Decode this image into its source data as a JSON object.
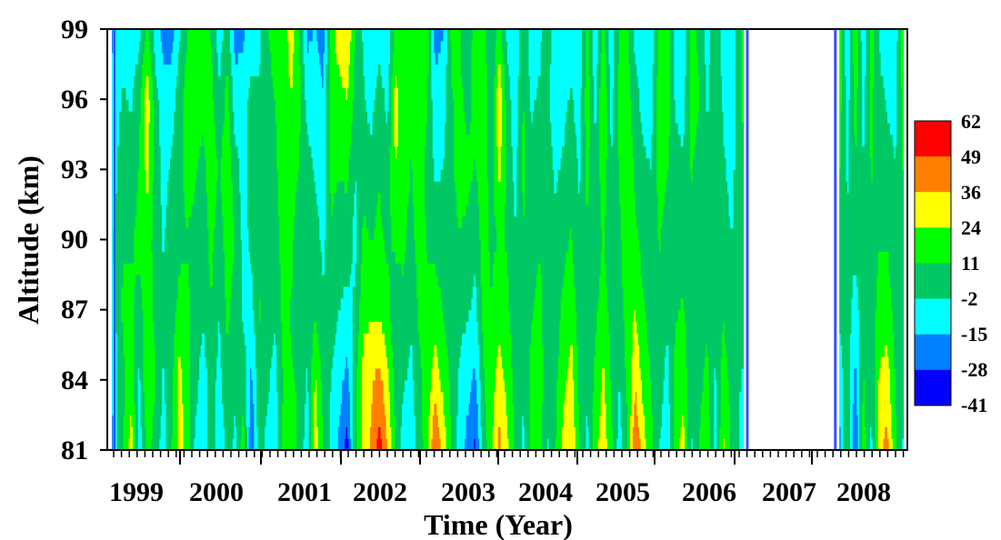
{
  "chart_data": {
    "type": "heatmap",
    "subtype": "filled-contour",
    "title": "",
    "xlabel": "Time (Year)",
    "ylabel": "Altitude (km)",
    "xlim": [
      1998.6,
      2008.6
    ],
    "ylim": [
      81,
      99
    ],
    "x_tick_labels": [
      "1999",
      "2000",
      "2001",
      "2002",
      "2003",
      "2004",
      "2005",
      "2006",
      "2007",
      "2008"
    ],
    "y_ticks": [
      81,
      84,
      87,
      90,
      93,
      96,
      99
    ],
    "colorbar": {
      "placement": "right",
      "levels": [
        62,
        49,
        36,
        24,
        11,
        -2,
        -15,
        -28,
        -41
      ],
      "colors": [
        "#ff0000",
        "#ff8000",
        "#ffff00",
        "#00ff00",
        "#00c864",
        "#00ffff",
        "#0080ff",
        "#0000ff"
      ]
    },
    "data_gap": {
      "from": 2006.6,
      "to": 2007.7
    },
    "column_times": [
      1998.65,
      1998.8,
      1998.9,
      1999.0,
      1999.1,
      1999.2,
      1999.3,
      1999.4,
      1999.5,
      1999.6,
      1999.7,
      1999.8,
      1999.9,
      2000.0,
      2000.1,
      2000.2,
      2000.3,
      2000.4,
      2000.5,
      2000.6,
      2000.7,
      2000.8,
      2000.9,
      2001.0,
      2001.1,
      2001.2,
      2001.3,
      2001.4,
      2001.5,
      2001.6,
      2001.7,
      2001.8,
      2001.9,
      2002.0,
      2002.1,
      2002.2,
      2002.3,
      2002.4,
      2002.5,
      2002.6,
      2002.7,
      2002.8,
      2002.9,
      2003.0,
      2003.1,
      2003.2,
      2003.3,
      2003.4,
      2003.5,
      2003.6,
      2003.7,
      2003.8,
      2003.9,
      2004.0,
      2004.1,
      2004.2,
      2004.3,
      2004.4,
      2004.5,
      2004.6,
      2004.7,
      2004.8,
      2004.9,
      2005.0,
      2005.1,
      2005.2,
      2005.3,
      2005.4,
      2005.5,
      2005.6,
      2005.7,
      2005.8,
      2005.9,
      2006.0,
      2006.1,
      2006.2,
      2006.3,
      2006.4,
      2006.55,
      2007.75,
      2007.85,
      2007.95,
      2008.05,
      2008.15,
      2008.25,
      2008.35,
      2008.45,
      2008.55
    ],
    "altitudes_km": [
      81,
      84,
      87,
      90,
      93,
      96,
      99
    ],
    "values_by_column_bottom_to_top": [
      [
        -20,
        -15,
        -10,
        -5,
        -10,
        -12,
        -18
      ],
      [
        12,
        8,
        14,
        10,
        6,
        0,
        -8
      ],
      [
        30,
        20,
        14,
        9,
        4,
        -4,
        -10
      ],
      [
        -10,
        -5,
        6,
        15,
        12,
        8,
        -6
      ],
      [
        15,
        25,
        18,
        20,
        28,
        32,
        14
      ],
      [
        5,
        12,
        8,
        4,
        6,
        4,
        -8
      ],
      [
        -8,
        -4,
        2,
        -3,
        -6,
        -10,
        -20
      ],
      [
        10,
        6,
        4,
        2,
        0,
        -8,
        -22
      ],
      [
        28,
        30,
        15,
        8,
        6,
        4,
        -4
      ],
      [
        20,
        15,
        14,
        10,
        16,
        18,
        10
      ],
      [
        -5,
        2,
        6,
        8,
        12,
        14,
        18
      ],
      [
        -10,
        -8,
        0,
        4,
        8,
        14,
        16
      ],
      [
        6,
        4,
        10,
        15,
        18,
        15,
        10
      ],
      [
        -12,
        -6,
        -2,
        4,
        10,
        0,
        -10
      ],
      [
        2,
        8,
        14,
        18,
        20,
        16,
        6
      ],
      [
        -5,
        0,
        6,
        10,
        4,
        -10,
        -20
      ],
      [
        18,
        6,
        -4,
        -6,
        -8,
        -8,
        -18
      ],
      [
        -28,
        -18,
        -6,
        0,
        6,
        2,
        -8
      ],
      [
        4,
        8,
        12,
        8,
        4,
        0,
        -6
      ],
      [
        -6,
        0,
        4,
        10,
        6,
        2,
        10
      ],
      [
        -10,
        -6,
        0,
        4,
        8,
        12,
        20
      ],
      [
        14,
        12,
        16,
        18,
        20,
        16,
        18
      ],
      [
        18,
        12,
        10,
        14,
        18,
        24,
        30
      ],
      [
        8,
        10,
        6,
        2,
        10,
        14,
        12
      ],
      [
        -10,
        -4,
        2,
        6,
        4,
        -8,
        -18
      ],
      [
        30,
        26,
        10,
        4,
        -4,
        -10,
        -14
      ],
      [
        12,
        6,
        0,
        -6,
        -10,
        -14,
        -20
      ],
      [
        -6,
        -2,
        4,
        10,
        14,
        18,
        20
      ],
      [
        -18,
        -10,
        -2,
        4,
        12,
        20,
        30
      ],
      [
        -35,
        -20,
        -6,
        4,
        14,
        24,
        36
      ],
      [
        10,
        6,
        0,
        -6,
        -2,
        6,
        10
      ],
      [
        25,
        30,
        20,
        14,
        6,
        0,
        -4
      ],
      [
        38,
        34,
        22,
        10,
        4,
        -8,
        -14
      ],
      [
        55,
        40,
        22,
        14,
        10,
        6,
        -10
      ],
      [
        36,
        28,
        16,
        8,
        4,
        -6,
        -14
      ],
      [
        12,
        6,
        2,
        14,
        24,
        30,
        14
      ],
      [
        -10,
        0,
        8,
        14,
        18,
        16,
        12
      ],
      [
        -10,
        -6,
        0,
        6,
        10,
        14,
        18
      ],
      [
        4,
        8,
        14,
        18,
        20,
        22,
        18
      ],
      [
        20,
        18,
        14,
        10,
        6,
        12,
        16
      ],
      [
        50,
        30,
        18,
        6,
        -4,
        -12,
        -20
      ],
      [
        32,
        20,
        10,
        4,
        -2,
        -8,
        -16
      ],
      [
        12,
        8,
        4,
        6,
        8,
        10,
        14
      ],
      [
        -8,
        -4,
        2,
        10,
        16,
        14,
        12
      ],
      [
        -20,
        -10,
        0,
        8,
        14,
        8,
        -2
      ],
      [
        -30,
        -18,
        -6,
        2,
        10,
        14,
        20
      ],
      [
        4,
        10,
        14,
        18,
        20,
        24,
        16
      ],
      [
        20,
        18,
        12,
        8,
        4,
        0,
        -4
      ],
      [
        40,
        30,
        20,
        12,
        28,
        36,
        16
      ],
      [
        26,
        20,
        14,
        10,
        6,
        4,
        -6
      ],
      [
        10,
        6,
        2,
        -2,
        -6,
        -10,
        -16
      ],
      [
        -6,
        0,
        6,
        10,
        14,
        12,
        10
      ],
      [
        16,
        14,
        10,
        6,
        2,
        -4,
        -10
      ],
      [
        20,
        18,
        14,
        10,
        6,
        0,
        -6
      ],
      [
        -4,
        2,
        6,
        10,
        4,
        0,
        8
      ],
      [
        10,
        8,
        4,
        0,
        -4,
        -8,
        -12
      ],
      [
        28,
        20,
        14,
        8,
        0,
        -6,
        -16
      ],
      [
        36,
        30,
        20,
        12,
        6,
        0,
        -10
      ],
      [
        12,
        8,
        4,
        0,
        -4,
        -8,
        -14
      ],
      [
        -6,
        0,
        6,
        10,
        14,
        18,
        16
      ],
      [
        20,
        14,
        8,
        4,
        0,
        -6,
        -12
      ],
      [
        32,
        26,
        18,
        12,
        20,
        26,
        14
      ],
      [
        14,
        10,
        6,
        2,
        -2,
        -6,
        -12
      ],
      [
        -8,
        -2,
        4,
        8,
        12,
        14,
        12
      ],
      [
        10,
        14,
        18,
        20,
        22,
        18,
        12
      ],
      [
        48,
        34,
        24,
        14,
        8,
        2,
        -6
      ],
      [
        30,
        20,
        12,
        6,
        0,
        -6,
        -12
      ],
      [
        14,
        10,
        6,
        2,
        -2,
        -6,
        -10
      ],
      [
        -2,
        4,
        8,
        12,
        16,
        18,
        14
      ],
      [
        -12,
        -6,
        0,
        6,
        12,
        18,
        24
      ],
      [
        18,
        14,
        10,
        6,
        2,
        -4,
        -8
      ],
      [
        30,
        20,
        12,
        6,
        0,
        -6,
        -12
      ],
      [
        -4,
        0,
        4,
        8,
        12,
        14,
        16
      ],
      [
        12,
        8,
        4,
        0,
        6,
        12,
        8
      ],
      [
        20,
        14,
        8,
        4,
        0,
        -4,
        -8
      ],
      [
        -8,
        -4,
        0,
        4,
        8,
        12,
        10
      ],
      [
        26,
        18,
        10,
        4,
        0,
        -4,
        -10
      ],
      [
        10,
        6,
        2,
        -2,
        -6,
        -10,
        -14
      ],
      [
        -10,
        -4,
        2,
        6,
        10,
        14,
        18
      ],
      [
        -20,
        -10,
        0,
        6,
        12,
        18,
        24
      ],
      [
        12,
        8,
        4,
        0,
        -4,
        -8,
        -12
      ],
      [
        -30,
        -20,
        -8,
        2,
        10,
        16,
        20
      ],
      [
        18,
        12,
        6,
        2,
        -2,
        -6,
        -10
      ],
      [
        -6,
        0,
        4,
        8,
        12,
        14,
        16
      ],
      [
        34,
        26,
        16,
        10,
        6,
        2,
        -4
      ],
      [
        40,
        30,
        18,
        10,
        4,
        -4,
        -10
      ],
      [
        14,
        10,
        6,
        2,
        -2,
        -6,
        -10
      ],
      [
        -4,
        0,
        4,
        8,
        12,
        16,
        20
      ]
    ]
  }
}
